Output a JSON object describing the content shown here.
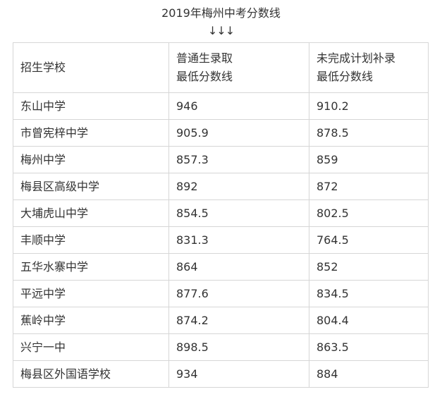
{
  "title": "2019年梅州中考分数线",
  "arrows": "↓↓↓",
  "table": {
    "headers": {
      "school": "招生学校",
      "general_line1": "普通生录取",
      "general_line2": "最低分数线",
      "supplement_line1": "未完成计划补录",
      "supplement_line2": "最低分数线"
    },
    "rows": [
      {
        "school": "东山中学",
        "general": "946",
        "supplement": "910.2"
      },
      {
        "school": "市曾宪梓中学",
        "general": "905.9",
        "supplement": "878.5"
      },
      {
        "school": "梅州中学",
        "general": "857.3",
        "supplement": "859"
      },
      {
        "school": "梅县区高级中学",
        "general": "892",
        "supplement": "872"
      },
      {
        "school": "大埔虎山中学",
        "general": "854.5",
        "supplement": "802.5"
      },
      {
        "school": "丰顺中学",
        "general": "831.3",
        "supplement": "764.5"
      },
      {
        "school": "五华水寨中学",
        "general": "864",
        "supplement": "852"
      },
      {
        "school": "平远中学",
        "general": "877.6",
        "supplement": "834.5"
      },
      {
        "school": "蕉岭中学",
        "general": "874.2",
        "supplement": "804.4"
      },
      {
        "school": "兴宁一中",
        "general": "898.5",
        "supplement": "863.5"
      },
      {
        "school": "梅县区外国语学校",
        "general": "934",
        "supplement": "884"
      }
    ]
  }
}
